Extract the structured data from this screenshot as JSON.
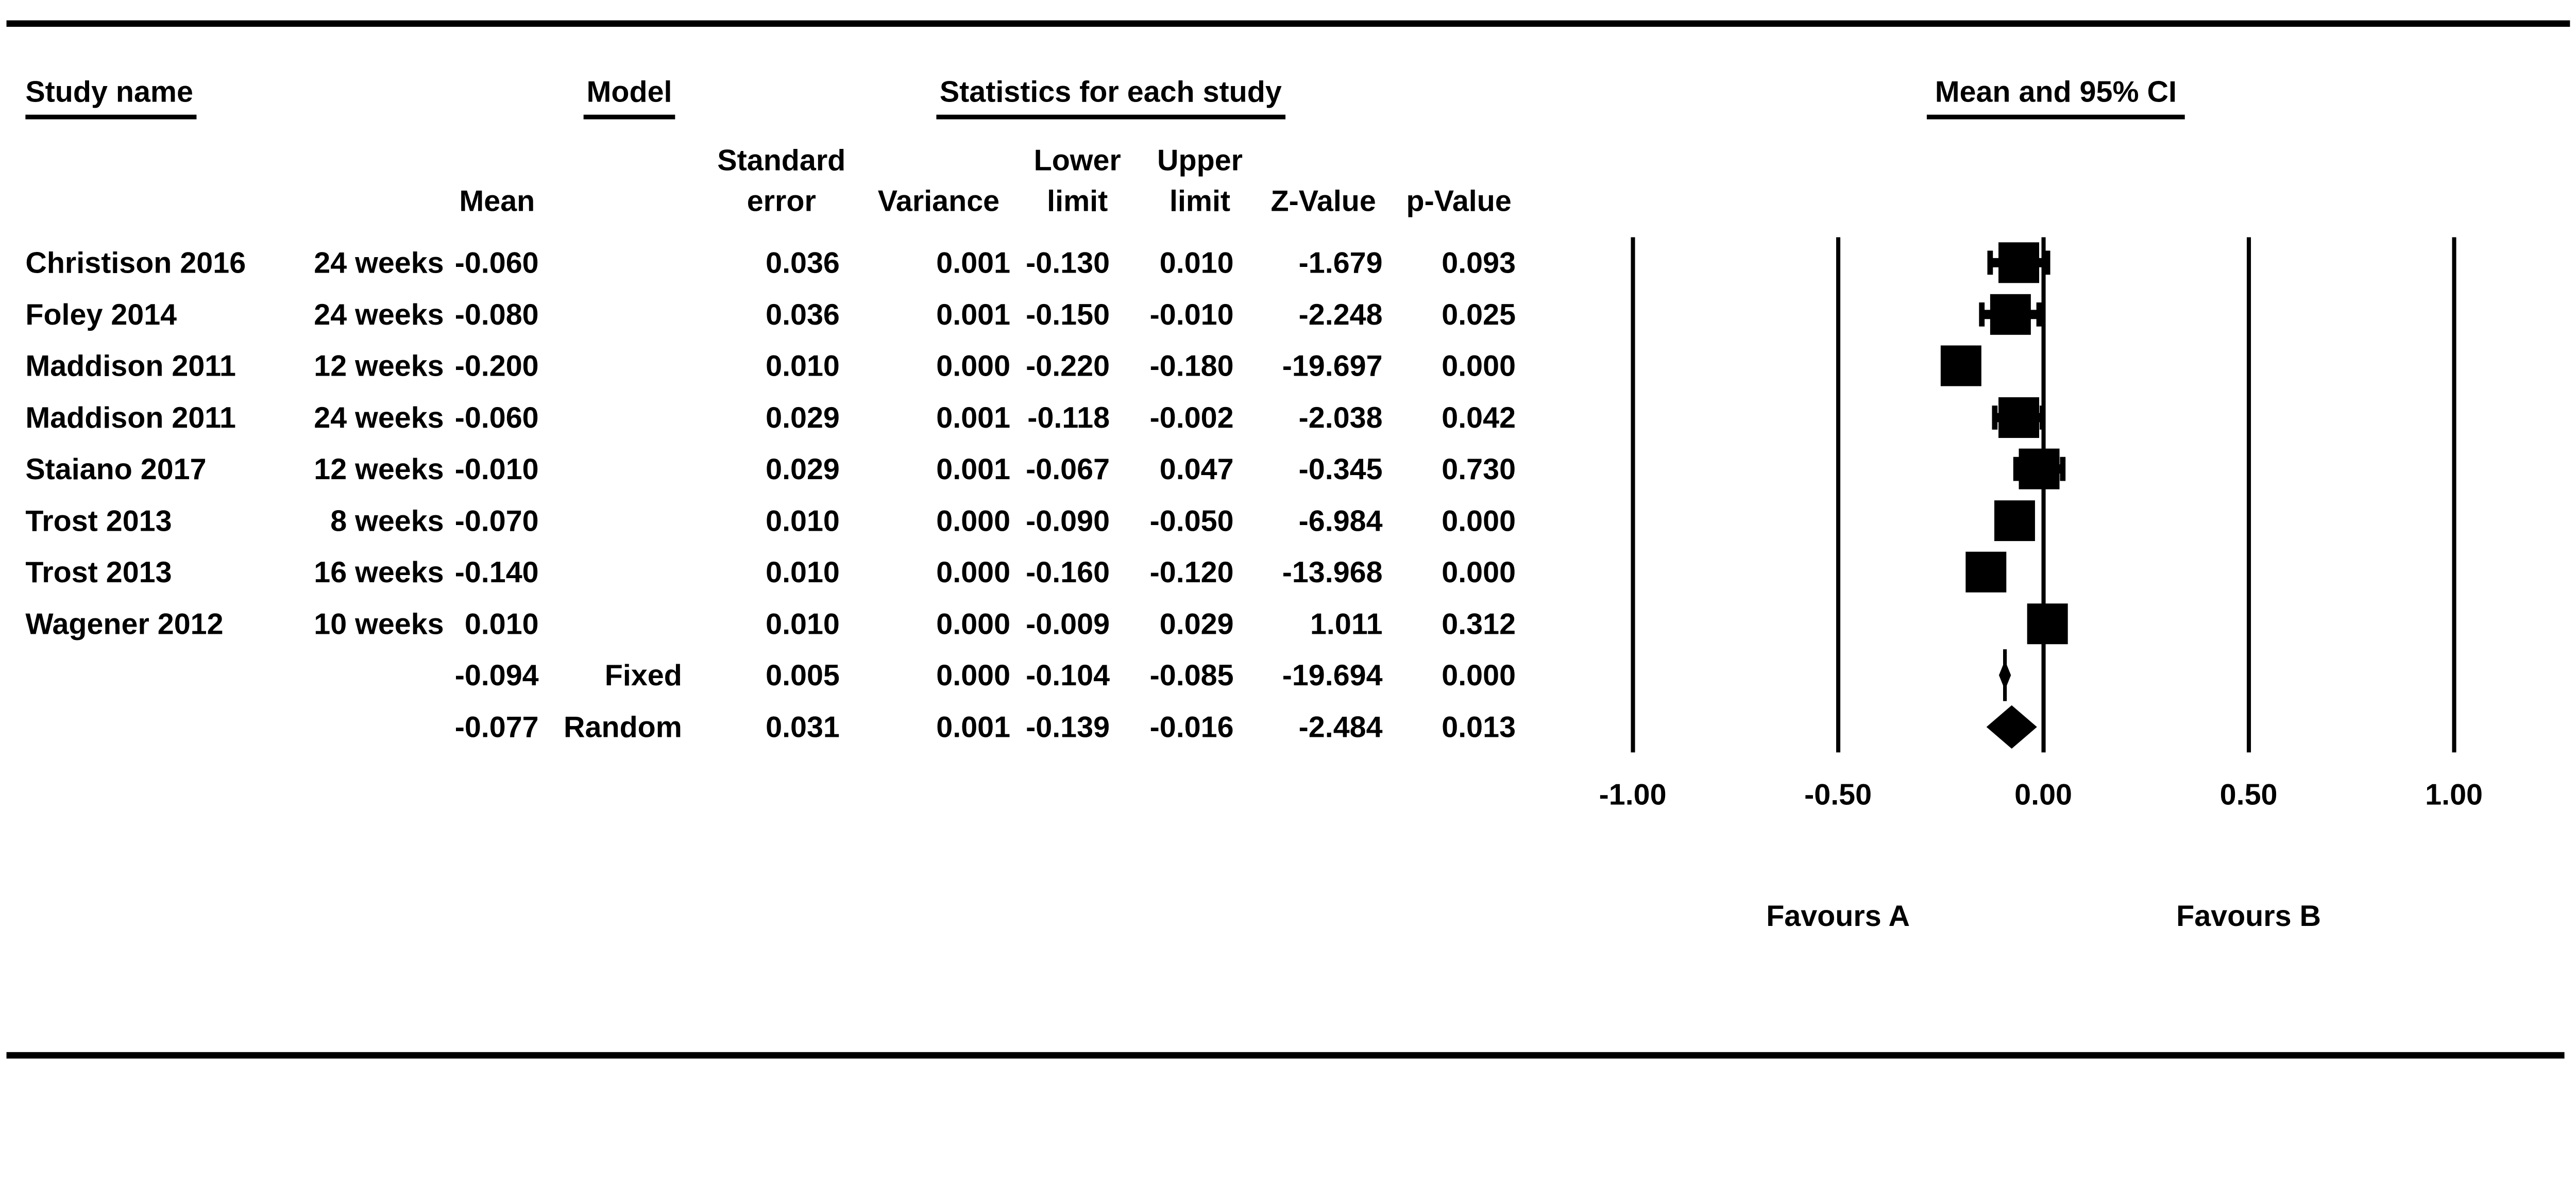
{
  "table_headers": {
    "study": "Study name",
    "model": "Model",
    "stats_group": "Statistics for each study",
    "plot_title": "Mean and 95% CI",
    "standard": "Standard",
    "error": "error",
    "mean": "Mean",
    "variance": "Variance",
    "lower": "Lower",
    "upper": "Upper",
    "limit": "limit",
    "z_value": "Z-Value",
    "p_value": "p-Value"
  },
  "chart_data": {
    "type": "scatter",
    "subtype": "forest-plot",
    "title": "Mean and 95% CI",
    "stats_title": "Statistics for each study",
    "xlim": [
      -1.0,
      1.0
    ],
    "xticks": [
      -1.0,
      -0.5,
      0.0,
      0.5,
      1.0
    ],
    "xtick_labels": [
      "-1.00",
      "-0.50",
      "0.00",
      "0.50",
      "1.00"
    ],
    "xlabel_left": "Favours A",
    "xlabel_right": "Favours B",
    "grid": "vertical-lines-at-ticks",
    "legend_position": "none",
    "studies": [
      {
        "study": "Christison 2016",
        "time": "24 weeks",
        "mean": -0.06,
        "se": 0.036,
        "variance": 0.001,
        "lower": -0.13,
        "upper": 0.01,
        "z": -1.679,
        "p": "0.093",
        "display": {
          "mean": "-0.060",
          "se": "0.036",
          "variance": "0.001",
          "lower": "-0.130",
          "upper": "0.010",
          "z": "-1.679",
          "p": "0.093"
        }
      },
      {
        "study": "Foley 2014",
        "time": "24 weeks",
        "mean": -0.08,
        "se": 0.036,
        "variance": 0.001,
        "lower": -0.15,
        "upper": -0.01,
        "z": -2.248,
        "p": "0.025",
        "display": {
          "mean": "-0.080",
          "se": "0.036",
          "variance": "0.001",
          "lower": "-0.150",
          "upper": "-0.010",
          "z": "-2.248",
          "p": "0.025"
        }
      },
      {
        "study": "Maddison 2011",
        "time": "12 weeks",
        "mean": -0.2,
        "se": 0.01,
        "variance": 0.0,
        "lower": -0.22,
        "upper": -0.18,
        "z": -19.697,
        "p": "0.000",
        "display": {
          "mean": "-0.200",
          "se": "0.010",
          "variance": "0.000",
          "lower": "-0.220",
          "upper": "-0.180",
          "z": "-19.697",
          "p": "0.000"
        }
      },
      {
        "study": "Maddison 2011",
        "time": "24 weeks",
        "mean": -0.06,
        "se": 0.029,
        "variance": 0.001,
        "lower": -0.118,
        "upper": -0.002,
        "z": -2.038,
        "p": "0.042",
        "display": {
          "mean": "-0.060",
          "se": "0.029",
          "variance": "0.001",
          "lower": "-0.118",
          "upper": "-0.002",
          "z": "-2.038",
          "p": "0.042"
        }
      },
      {
        "study": "Staiano 2017",
        "time": "12 weeks",
        "mean": -0.01,
        "se": 0.029,
        "variance": 0.001,
        "lower": -0.067,
        "upper": 0.047,
        "z": -0.345,
        "p": "0.730",
        "display": {
          "mean": "-0.010",
          "se": "0.029",
          "variance": "0.001",
          "lower": "-0.067",
          "upper": "0.047",
          "z": "-0.345",
          "p": "0.730"
        }
      },
      {
        "study": "Trost 2013",
        "time": "8 weeks",
        "mean": -0.07,
        "se": 0.01,
        "variance": 0.0,
        "lower": -0.09,
        "upper": -0.05,
        "z": -6.984,
        "p": "0.000",
        "display": {
          "mean": "-0.070",
          "se": "0.010",
          "variance": "0.000",
          "lower": "-0.090",
          "upper": "-0.050",
          "z": "-6.984",
          "p": "0.000"
        }
      },
      {
        "study": "Trost 2013",
        "time": "16 weeks",
        "mean": -0.14,
        "se": 0.01,
        "variance": 0.0,
        "lower": -0.16,
        "upper": -0.12,
        "z": -13.968,
        "p": "0.000",
        "display": {
          "mean": "-0.140",
          "se": "0.010",
          "variance": "0.000",
          "lower": "-0.160",
          "upper": "-0.120",
          "z": "-13.968",
          "p": "0.000"
        }
      },
      {
        "study": "Wagener 2012",
        "time": "10 weeks",
        "mean": 0.01,
        "se": 0.01,
        "variance": 0.0,
        "lower": -0.009,
        "upper": 0.029,
        "z": 1.011,
        "p": "0.312",
        "display": {
          "mean": "0.010",
          "se": "0.010",
          "variance": "0.000",
          "lower": "-0.009",
          "upper": "0.029",
          "z": "1.011",
          "p": "0.312"
        }
      }
    ],
    "summaries": [
      {
        "model": "Fixed",
        "mean": -0.094,
        "se": 0.005,
        "variance": 0.0,
        "lower": -0.104,
        "upper": -0.085,
        "z": -19.694,
        "p": "0.000",
        "display": {
          "mean": "-0.094",
          "se": "0.005",
          "variance": "0.000",
          "lower": "-0.104",
          "upper": "-0.085",
          "z": "-19.694",
          "p": "0.000"
        }
      },
      {
        "model": "Random",
        "mean": -0.077,
        "se": 0.031,
        "variance": 0.001,
        "lower": -0.139,
        "upper": -0.016,
        "z": -2.484,
        "p": "0.013",
        "display": {
          "mean": "-0.077",
          "se": "0.031",
          "variance": "0.001",
          "lower": "-0.139",
          "upper": "-0.016",
          "z": "-2.484",
          "p": "0.013"
        }
      }
    ]
  }
}
